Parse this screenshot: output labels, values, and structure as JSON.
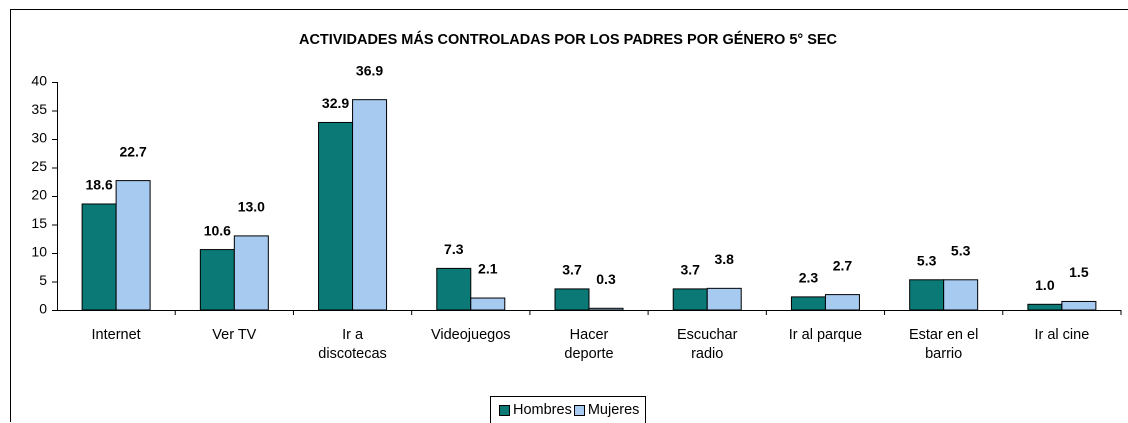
{
  "chart_data": {
    "type": "bar",
    "title": "ACTIVIDADES MÁS CONTROLADAS POR LOS PADRES POR GÉNERO 5° SEC",
    "categories": [
      "Internet",
      "Ver TV",
      "Ir a discotecas",
      "Videojuegos",
      "Hacer deporte",
      "Escuchar radio",
      "Ir al parque",
      "Estar en el barrio",
      "Ir al cine"
    ],
    "series": [
      {
        "name": "Hombres",
        "color": "#0b7a76",
        "values": [
          18.6,
          10.6,
          32.9,
          7.3,
          3.7,
          3.7,
          2.3,
          5.3,
          1.0
        ],
        "value_labels": [
          "18.6",
          "10.6",
          "32.9",
          "7.3",
          "3.7",
          "3.7",
          "2.3",
          "5.3",
          "1.0"
        ]
      },
      {
        "name": "Mujeres",
        "color": "#a6caf0",
        "values": [
          22.7,
          13.0,
          36.9,
          2.1,
          0.3,
          3.8,
          2.7,
          5.3,
          1.5
        ],
        "value_labels": [
          "22.7",
          "13.0",
          "36.9",
          "2.1",
          "0.3",
          "3.8",
          "2.7",
          "5.3",
          "1.5"
        ]
      }
    ],
    "ylim": [
      0,
      40
    ],
    "yticks": [
      0,
      5,
      10,
      15,
      20,
      25,
      30,
      35,
      40
    ],
    "grid": false,
    "legend": "bottom"
  }
}
